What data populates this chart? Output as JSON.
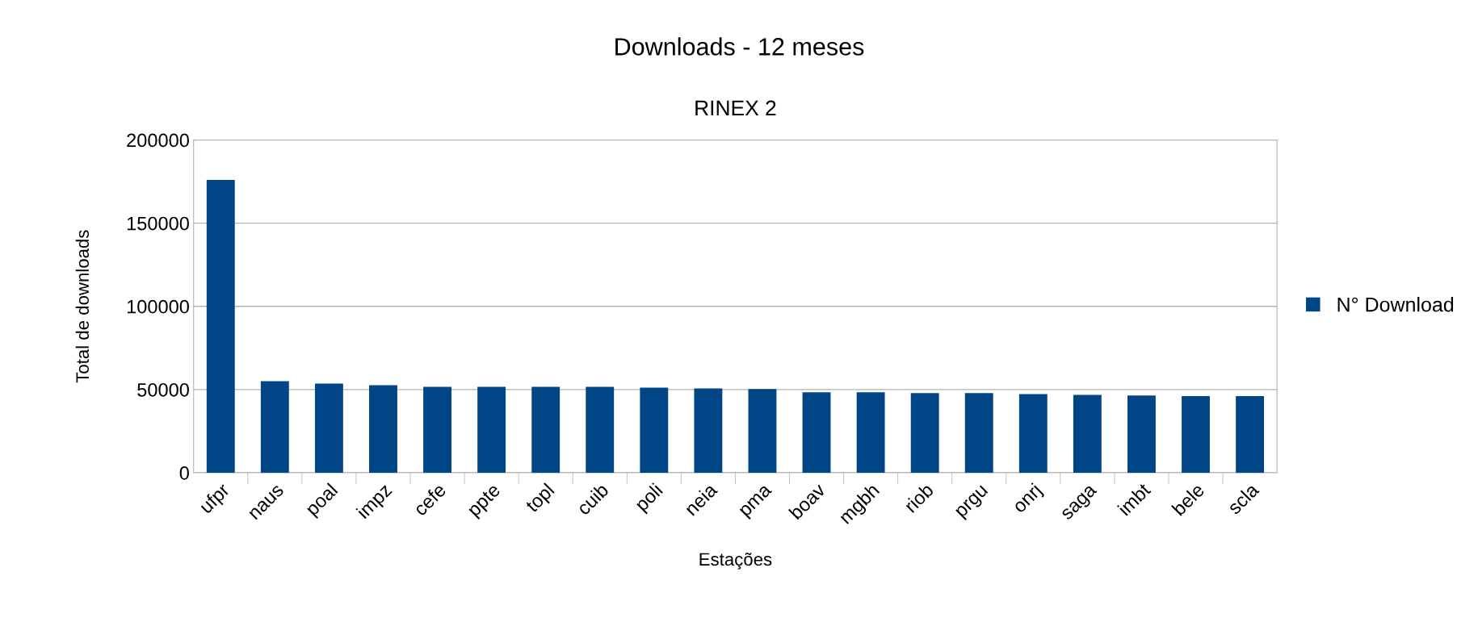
{
  "chart_data": {
    "type": "bar",
    "title": "Downloads - 12 meses",
    "subtitle": "RINEX 2",
    "xlabel": "Estações",
    "ylabel": "Total de downloads",
    "categories": [
      "ufpr",
      "naus",
      "poal",
      "impz",
      "cefe",
      "ppte",
      "topl",
      "cuib",
      "poli",
      "neia",
      "pma",
      "boav",
      "mgbh",
      "riob",
      "prgu",
      "onrj",
      "saga",
      "imbt",
      "bele",
      "scla"
    ],
    "series": [
      {
        "name": "N° Download",
        "color": "#004586",
        "values": [
          176000,
          55000,
          53500,
          52600,
          51600,
          51600,
          51600,
          51600,
          51100,
          50700,
          50300,
          48300,
          48300,
          47900,
          47900,
          47200,
          46800,
          46400,
          46000,
          46000
        ]
      }
    ],
    "ylim": [
      0,
      200000
    ],
    "yticks": [
      0,
      50000,
      100000,
      150000,
      200000
    ],
    "grid": "y",
    "legend": "right"
  }
}
